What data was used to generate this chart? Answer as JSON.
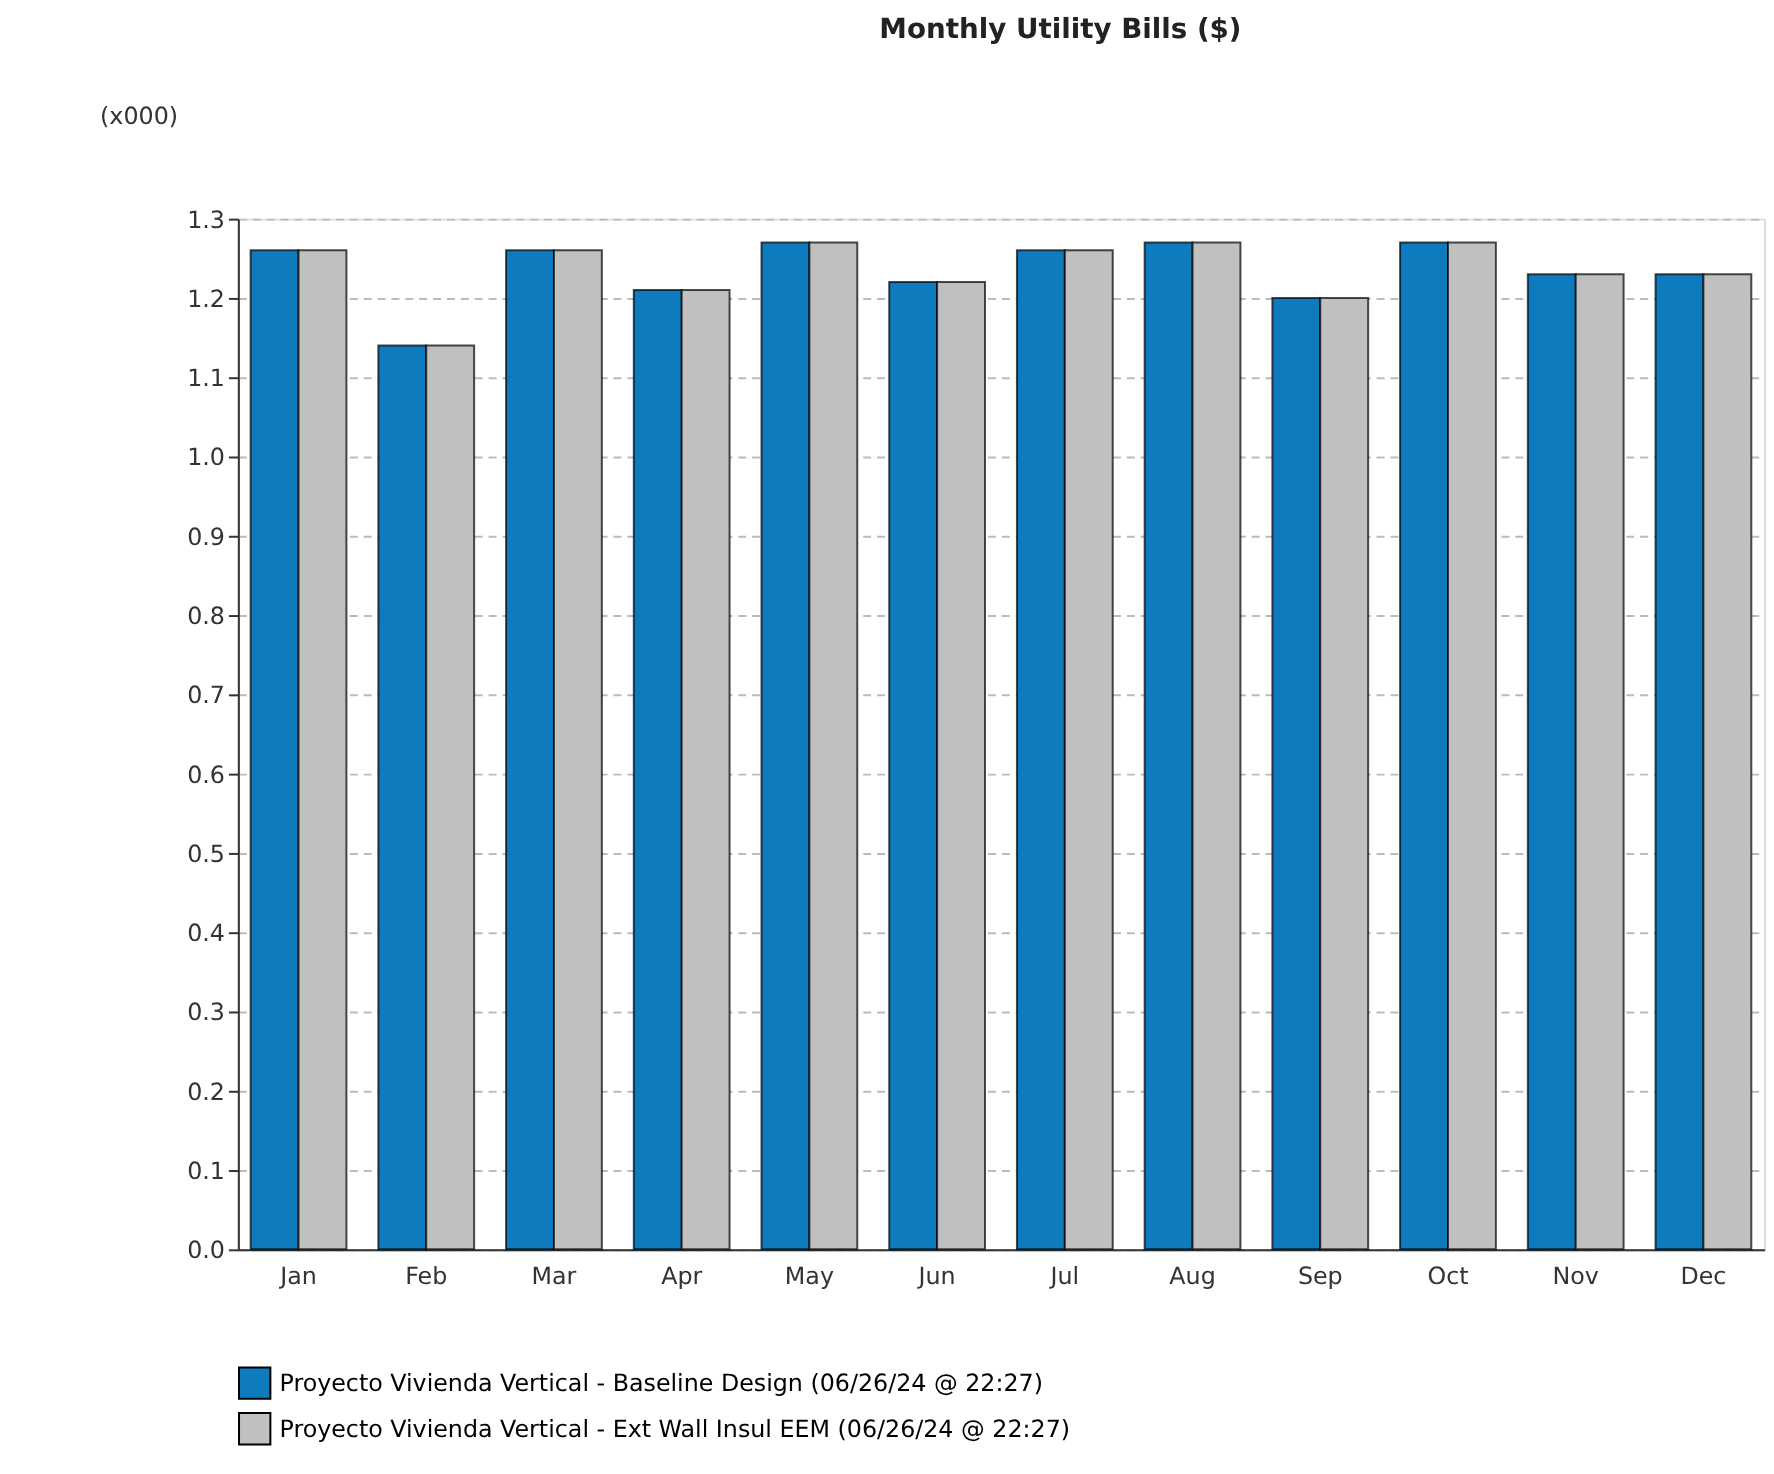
{
  "chart_data": {
    "type": "bar",
    "title": "Monthly Utility Bills ($)",
    "ylabel": "(x000)",
    "categories": [
      "Jan",
      "Feb",
      "Mar",
      "Apr",
      "May",
      "Jun",
      "Jul",
      "Aug",
      "Sep",
      "Oct",
      "Nov",
      "Dec"
    ],
    "series": [
      {
        "name": "Proyecto Vivienda Vertical - Baseline Design  (06/26/24 @ 22:27)",
        "color": "#0f7bbf",
        "values": [
          1.26,
          1.14,
          1.26,
          1.21,
          1.27,
          1.22,
          1.26,
          1.27,
          1.2,
          1.27,
          1.23,
          1.23
        ]
      },
      {
        "name": "Proyecto Vivienda Vertical - Ext Wall Insul EEM  (06/26/24 @ 22:27)",
        "color": "#c0c0c0",
        "values": [
          1.26,
          1.14,
          1.26,
          1.21,
          1.27,
          1.22,
          1.26,
          1.27,
          1.2,
          1.27,
          1.23,
          1.23
        ]
      }
    ],
    "ylim": [
      0,
      1.3
    ],
    "yticks": [
      {
        "value": 0,
        "label": "0.0"
      },
      0.1,
      0.2,
      0.3,
      0.4,
      0.5,
      0.6,
      0.7,
      0.8,
      0.9,
      {
        "value": 1,
        "label": "1.0"
      },
      1.1,
      1.2,
      1.3
    ],
    "grid": "y",
    "legend": "bottom"
  }
}
